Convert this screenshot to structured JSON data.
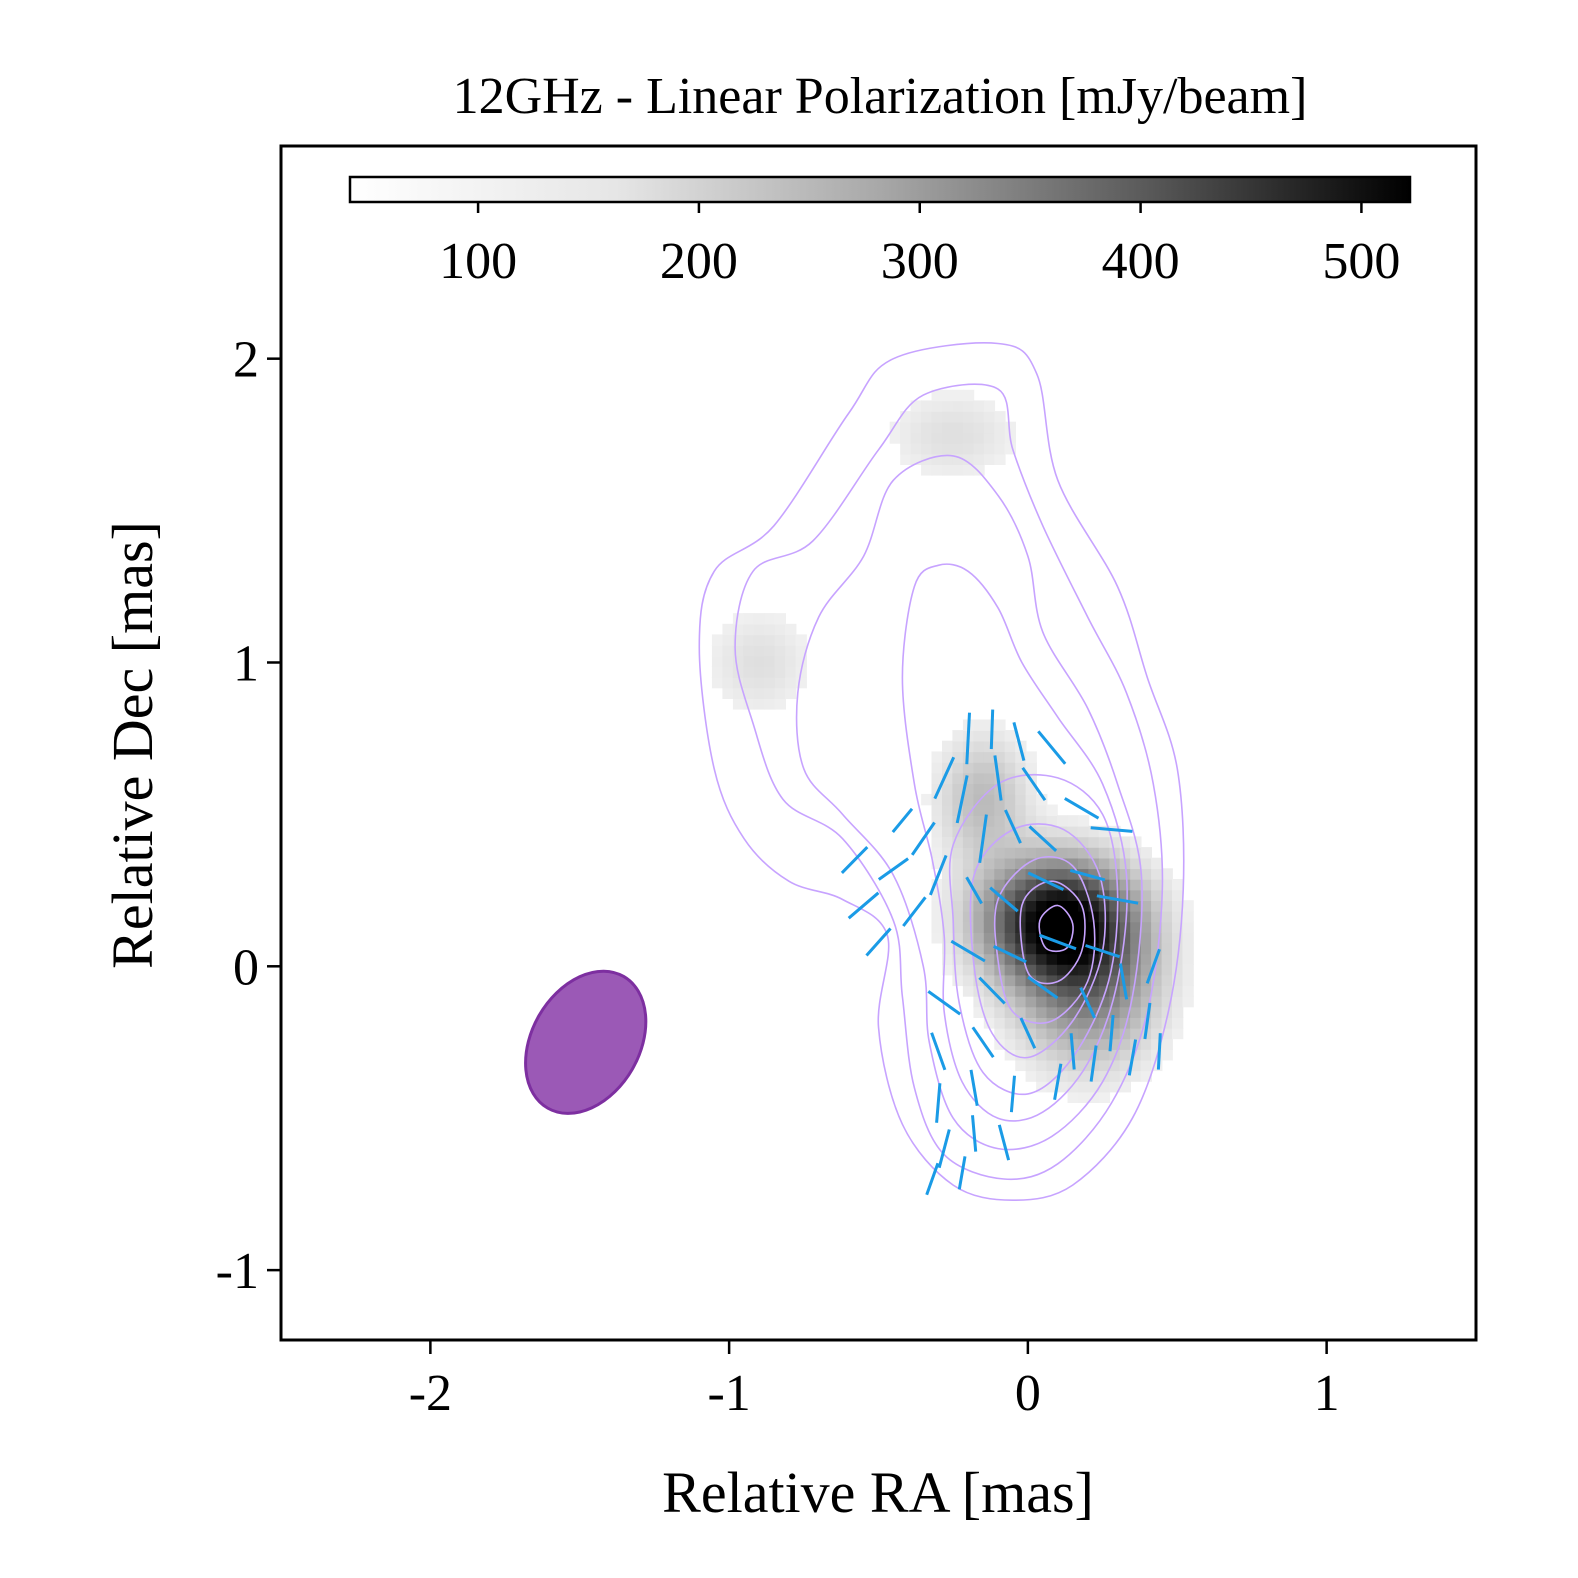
{
  "chart_data": {
    "type": "heatmap",
    "title": "12GHz - Linear Polarization [mJy/beam]",
    "xlabel": "Relative RA [mas]",
    "ylabel": "Relative Dec [mas]",
    "xlim": [
      -2.5,
      1.5
    ],
    "ylim": [
      -1.23,
      2.7
    ],
    "x_ticks": [
      {
        "value": -2,
        "label": "-2"
      },
      {
        "value": -1,
        "label": "-1"
      },
      {
        "value": 0,
        "label": "0"
      },
      {
        "value": 1,
        "label": "1"
      }
    ],
    "y_ticks": [
      {
        "value": -1,
        "label": "-1"
      },
      {
        "value": 0,
        "label": "0"
      },
      {
        "value": 1,
        "label": "1"
      },
      {
        "value": 2,
        "label": "2"
      }
    ],
    "colorbar": {
      "range": [
        42,
        522
      ],
      "ticks": [
        {
          "value": 100,
          "label": "100"
        },
        {
          "value": 200,
          "label": "200"
        },
        {
          "value": 300,
          "label": "300"
        },
        {
          "value": 400,
          "label": "400"
        },
        {
          "value": 500,
          "label": "500"
        }
      ],
      "colormap": "Greys"
    },
    "intensity_components": [
      {
        "x": 0.1,
        "y": 0.15,
        "peak": 520,
        "sx": 0.16,
        "sy": 0.13
      },
      {
        "x": 0.2,
        "y": -0.05,
        "peak": 240,
        "sx": 0.15,
        "sy": 0.17
      },
      {
        "x": -0.15,
        "y": 0.55,
        "peak": 110,
        "sx": 0.1,
        "sy": 0.14
      },
      {
        "x": -0.9,
        "y": 1.0,
        "peak": 45,
        "sx": 0.12,
        "sy": 0.12
      },
      {
        "x": -0.25,
        "y": 1.75,
        "peak": 45,
        "sx": 0.15,
        "sy": 0.1
      }
    ],
    "contour_color": "#c7a3ff",
    "contours": [
      {
        "level": 1,
        "pts": [
          [
            -1.1,
            1.05
          ],
          [
            -1.05,
            1.3
          ],
          [
            -0.85,
            1.45
          ],
          [
            -0.6,
            1.82
          ],
          [
            -0.45,
            2.0
          ],
          [
            -0.1,
            2.05
          ],
          [
            0.03,
            1.95
          ],
          [
            0.1,
            1.6
          ],
          [
            0.3,
            1.25
          ],
          [
            0.4,
            0.95
          ],
          [
            0.5,
            0.65
          ],
          [
            0.52,
            0.25
          ],
          [
            0.47,
            -0.15
          ],
          [
            0.35,
            -0.5
          ],
          [
            0.15,
            -0.72
          ],
          [
            -0.05,
            -0.77
          ],
          [
            -0.25,
            -0.72
          ],
          [
            -0.42,
            -0.52
          ],
          [
            -0.5,
            -0.2
          ],
          [
            -0.47,
            0.1
          ],
          [
            -0.62,
            0.22
          ],
          [
            -0.8,
            0.28
          ],
          [
            -0.95,
            0.42
          ],
          [
            -1.05,
            0.65
          ]
        ]
      },
      {
        "level": 2,
        "pts": [
          [
            -0.98,
            1.05
          ],
          [
            -0.92,
            1.3
          ],
          [
            -0.72,
            1.4
          ],
          [
            -0.5,
            1.7
          ],
          [
            -0.35,
            1.88
          ],
          [
            -0.1,
            1.9
          ],
          [
            -0.05,
            1.7
          ],
          [
            0.05,
            1.45
          ],
          [
            0.2,
            1.15
          ],
          [
            0.33,
            0.9
          ],
          [
            0.42,
            0.6
          ],
          [
            0.45,
            0.25
          ],
          [
            0.4,
            -0.15
          ],
          [
            0.28,
            -0.45
          ],
          [
            0.1,
            -0.65
          ],
          [
            -0.08,
            -0.7
          ],
          [
            -0.28,
            -0.62
          ],
          [
            -0.38,
            -0.4
          ],
          [
            -0.42,
            -0.1
          ],
          [
            -0.45,
            0.15
          ],
          [
            -0.62,
            0.42
          ],
          [
            -0.82,
            0.55
          ],
          [
            -0.92,
            0.8
          ]
        ]
      },
      {
        "level": 3,
        "pts": [
          [
            -0.77,
            0.9
          ],
          [
            -0.7,
            1.15
          ],
          [
            -0.55,
            1.35
          ],
          [
            -0.45,
            1.6
          ],
          [
            -0.25,
            1.68
          ],
          [
            -0.1,
            1.55
          ],
          [
            0.0,
            1.35
          ],
          [
            0.05,
            1.1
          ],
          [
            0.2,
            0.85
          ],
          [
            0.3,
            0.6
          ],
          [
            0.38,
            0.3
          ],
          [
            0.35,
            -0.1
          ],
          [
            0.25,
            -0.38
          ],
          [
            0.08,
            -0.56
          ],
          [
            -0.1,
            -0.6
          ],
          [
            -0.25,
            -0.5
          ],
          [
            -0.33,
            -0.25
          ],
          [
            -0.35,
            0.0
          ],
          [
            -0.45,
            0.3
          ],
          [
            -0.62,
            0.5
          ],
          [
            -0.75,
            0.65
          ]
        ]
      },
      {
        "level": 4,
        "pts": [
          [
            -0.38,
            1.25
          ],
          [
            -0.3,
            1.32
          ],
          [
            -0.2,
            1.3
          ],
          [
            -0.1,
            1.18
          ],
          [
            -0.02,
            1.0
          ],
          [
            0.1,
            0.82
          ],
          [
            0.25,
            0.6
          ],
          [
            0.33,
            0.3
          ],
          [
            0.3,
            -0.05
          ],
          [
            0.2,
            -0.32
          ],
          [
            0.05,
            -0.48
          ],
          [
            -0.1,
            -0.5
          ],
          [
            -0.22,
            -0.38
          ],
          [
            -0.28,
            -0.15
          ],
          [
            -0.28,
            0.1
          ],
          [
            -0.32,
            0.35
          ],
          [
            -0.38,
            0.6
          ],
          [
            -0.42,
            0.95
          ]
        ]
      },
      {
        "level": 5,
        "pts": [
          [
            -0.25,
            0.4
          ],
          [
            -0.1,
            0.6
          ],
          [
            0.1,
            0.62
          ],
          [
            0.25,
            0.5
          ],
          [
            0.3,
            0.25
          ],
          [
            0.27,
            -0.05
          ],
          [
            0.15,
            -0.3
          ],
          [
            0.0,
            -0.42
          ],
          [
            -0.15,
            -0.35
          ],
          [
            -0.23,
            -0.12
          ],
          [
            -0.25,
            0.15
          ]
        ]
      },
      {
        "level": 6,
        "pts": [
          [
            -0.18,
            0.3
          ],
          [
            -0.05,
            0.45
          ],
          [
            0.12,
            0.45
          ],
          [
            0.24,
            0.3
          ],
          [
            0.25,
            0.05
          ],
          [
            0.15,
            -0.18
          ],
          [
            0.0,
            -0.3
          ],
          [
            -0.12,
            -0.22
          ],
          [
            -0.18,
            0.0
          ]
        ]
      },
      {
        "level": 7,
        "pts": [
          [
            -0.1,
            0.22
          ],
          [
            0.02,
            0.35
          ],
          [
            0.15,
            0.33
          ],
          [
            0.22,
            0.15
          ],
          [
            0.2,
            -0.05
          ],
          [
            0.08,
            -0.18
          ],
          [
            -0.05,
            -0.15
          ],
          [
            -0.1,
            0.02
          ]
        ]
      },
      {
        "level": 8,
        "pts": [
          [
            -0.02,
            0.2
          ],
          [
            0.08,
            0.28
          ],
          [
            0.18,
            0.2
          ],
          [
            0.18,
            0.05
          ],
          [
            0.1,
            -0.05
          ],
          [
            0.0,
            -0.02
          ]
        ]
      },
      {
        "level": 9,
        "pts": [
          [
            0.04,
            0.15
          ],
          [
            0.1,
            0.2
          ],
          [
            0.15,
            0.14
          ],
          [
            0.13,
            0.06
          ],
          [
            0.06,
            0.06
          ]
        ]
      }
    ],
    "evpa_color": "#1a9be6",
    "evpa_vectors": [
      {
        "x": -0.58,
        "y": 0.35,
        "angle": 45,
        "length": 0.12
      },
      {
        "x": -0.55,
        "y": 0.2,
        "angle": 50,
        "length": 0.13
      },
      {
        "x": -0.5,
        "y": 0.08,
        "angle": 42,
        "length": 0.12
      },
      {
        "x": -0.45,
        "y": 0.32,
        "angle": 55,
        "length": 0.12
      },
      {
        "x": -0.42,
        "y": 0.48,
        "angle": 40,
        "length": 0.1
      },
      {
        "x": -0.38,
        "y": 0.18,
        "angle": 38,
        "length": 0.12
      },
      {
        "x": -0.35,
        "y": 0.42,
        "angle": 35,
        "length": 0.13
      },
      {
        "x": -0.28,
        "y": 0.62,
        "angle": 25,
        "length": 0.15
      },
      {
        "x": -0.3,
        "y": 0.3,
        "angle": 22,
        "length": 0.14
      },
      {
        "x": -0.22,
        "y": 0.55,
        "angle": 12,
        "length": 0.16
      },
      {
        "x": -0.2,
        "y": 0.75,
        "angle": 3,
        "length": 0.17
      },
      {
        "x": -0.15,
        "y": 0.42,
        "angle": 8,
        "length": 0.16
      },
      {
        "x": -0.1,
        "y": 0.62,
        "angle": -8,
        "length": 0.15
      },
      {
        "x": -0.12,
        "y": 0.78,
        "angle": 2,
        "length": 0.13
      },
      {
        "x": -0.05,
        "y": 0.46,
        "angle": -25,
        "length": 0.12
      },
      {
        "x": -0.03,
        "y": 0.74,
        "angle": -15,
        "length": 0.13
      },
      {
        "x": 0.02,
        "y": 0.6,
        "angle": -35,
        "length": 0.13
      },
      {
        "x": 0.08,
        "y": 0.72,
        "angle": -40,
        "length": 0.14
      },
      {
        "x": 0.05,
        "y": 0.42,
        "angle": -48,
        "length": 0.12
      },
      {
        "x": 0.18,
        "y": 0.52,
        "angle": -60,
        "length": 0.13
      },
      {
        "x": 0.28,
        "y": 0.45,
        "angle": -85,
        "length": 0.14
      },
      {
        "x": -0.18,
        "y": 0.25,
        "angle": -30,
        "length": 0.1
      },
      {
        "x": -0.08,
        "y": 0.22,
        "angle": -50,
        "length": 0.12
      },
      {
        "x": 0.06,
        "y": 0.28,
        "angle": -65,
        "length": 0.13
      },
      {
        "x": 0.2,
        "y": 0.3,
        "angle": -75,
        "length": 0.12
      },
      {
        "x": 0.3,
        "y": 0.22,
        "angle": -80,
        "length": 0.14
      },
      {
        "x": -0.2,
        "y": 0.05,
        "angle": -60,
        "length": 0.13
      },
      {
        "x": -0.06,
        "y": 0.04,
        "angle": -65,
        "length": 0.12
      },
      {
        "x": 0.1,
        "y": 0.08,
        "angle": -70,
        "length": 0.13
      },
      {
        "x": 0.25,
        "y": 0.05,
        "angle": -72,
        "length": 0.12
      },
      {
        "x": -0.28,
        "y": -0.12,
        "angle": -55,
        "length": 0.13
      },
      {
        "x": -0.12,
        "y": -0.08,
        "angle": -45,
        "length": 0.12
      },
      {
        "x": 0.05,
        "y": -0.07,
        "angle": -55,
        "length": 0.12
      },
      {
        "x": 0.2,
        "y": -0.12,
        "angle": -25,
        "length": 0.11
      },
      {
        "x": 0.32,
        "y": -0.05,
        "angle": -10,
        "length": 0.12
      },
      {
        "x": 0.42,
        "y": 0.0,
        "angle": 20,
        "length": 0.12
      },
      {
        "x": -0.3,
        "y": -0.28,
        "angle": -20,
        "length": 0.13
      },
      {
        "x": -0.15,
        "y": -0.25,
        "angle": -35,
        "length": 0.12
      },
      {
        "x": 0.0,
        "y": -0.22,
        "angle": -25,
        "length": 0.11
      },
      {
        "x": 0.15,
        "y": -0.28,
        "angle": -5,
        "length": 0.12
      },
      {
        "x": 0.28,
        "y": -0.22,
        "angle": 5,
        "length": 0.12
      },
      {
        "x": 0.4,
        "y": -0.18,
        "angle": 8,
        "length": 0.12
      },
      {
        "x": 0.44,
        "y": -0.28,
        "angle": 3,
        "length": 0.12
      },
      {
        "x": -0.3,
        "y": -0.45,
        "angle": 5,
        "length": 0.13
      },
      {
        "x": -0.18,
        "y": -0.4,
        "angle": -10,
        "length": 0.12
      },
      {
        "x": -0.05,
        "y": -0.42,
        "angle": 5,
        "length": 0.12
      },
      {
        "x": 0.1,
        "y": -0.38,
        "angle": 10,
        "length": 0.12
      },
      {
        "x": 0.22,
        "y": -0.32,
        "angle": 8,
        "length": 0.12
      },
      {
        "x": 0.35,
        "y": -0.3,
        "angle": 10,
        "length": 0.12
      },
      {
        "x": -0.28,
        "y": -0.6,
        "angle": 15,
        "length": 0.13
      },
      {
        "x": -0.18,
        "y": -0.55,
        "angle": -5,
        "length": 0.12
      },
      {
        "x": -0.08,
        "y": -0.58,
        "angle": -15,
        "length": 0.12
      },
      {
        "x": -0.22,
        "y": -0.68,
        "angle": 10,
        "length": 0.11
      },
      {
        "x": -0.32,
        "y": -0.7,
        "angle": 20,
        "length": 0.11
      }
    ],
    "beam": {
      "x": -1.48,
      "y": -0.25,
      "major": 0.5,
      "minor": 0.36,
      "pa": 30,
      "fill": "#9b59b6",
      "edge": "#7d2fa0"
    }
  }
}
